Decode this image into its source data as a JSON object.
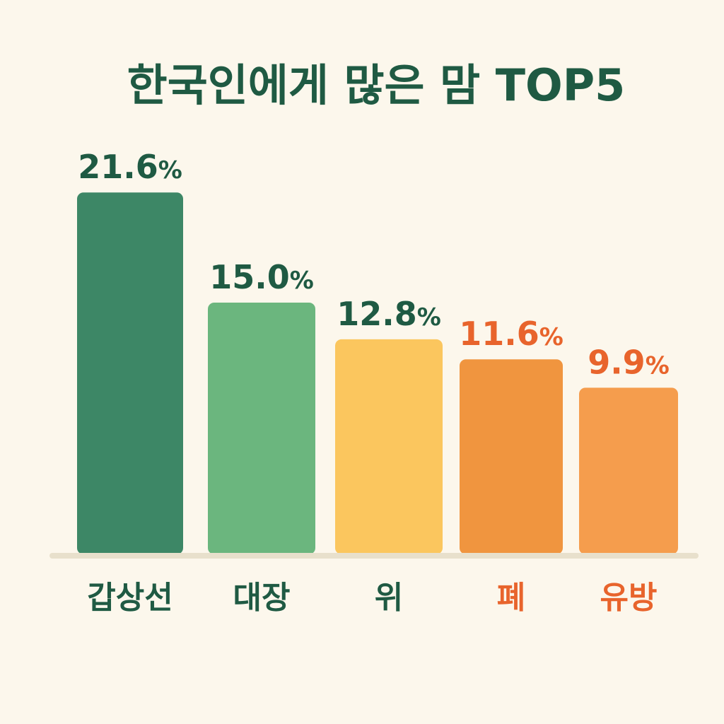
{
  "colors": {
    "background": "#fcf7ec",
    "title": "#1f5a43",
    "baseline": "#e8e0cc",
    "label_dark": "#1f5a43",
    "label_orange": "#e8642c"
  },
  "chart_data": {
    "type": "bar",
    "title": "한국인에게 많은 맘 TOP5",
    "xlabel": "",
    "ylabel": "",
    "ylim": [
      0,
      25
    ],
    "grid": false,
    "unit": "%",
    "categories": [
      "갑상선",
      "대장",
      "위",
      "폐",
      "유방"
    ],
    "values": [
      21.6,
      15.0,
      12.8,
      11.6,
      9.9
    ],
    "value_labels": [
      "21.6",
      "15.0",
      "12.8",
      "11.6",
      "9.9"
    ],
    "bar_colors": [
      "#3d8766",
      "#6bb67e",
      "#fbc65e",
      "#f0953f",
      "#f59d4d"
    ],
    "label_colors": [
      "#1f5a43",
      "#1f5a43",
      "#1f5a43",
      "#e8642c",
      "#e8642c"
    ]
  }
}
